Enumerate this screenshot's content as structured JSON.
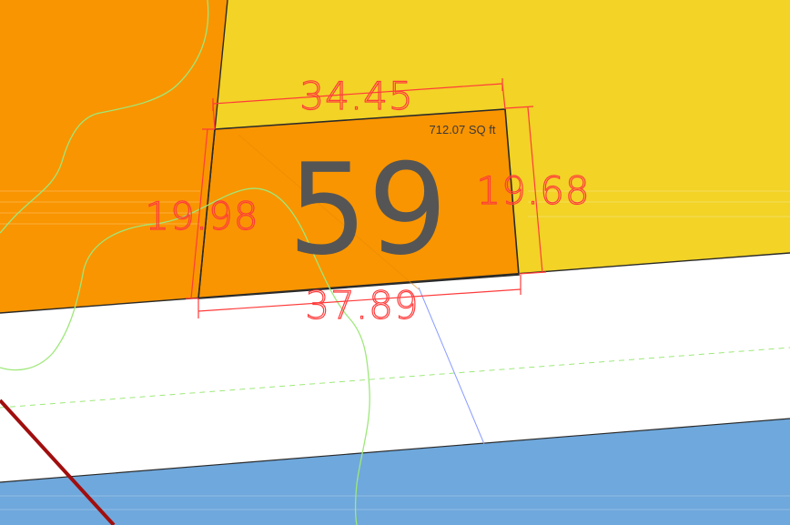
{
  "map": {
    "lot": {
      "number": "59",
      "area_label": "712.07 SQ ft",
      "dimensions": {
        "top": "34.45",
        "bottom": "37.89",
        "left": "19.98",
        "right": "19.68"
      }
    },
    "colors": {
      "lot_fill": "#F99500",
      "neighbor_fill": "#F99500",
      "zone_yellow": "#F2D326",
      "road_white": "#FFFFFF",
      "water_blue": "#6FA8DC",
      "dimension_red": "#FF3B3B",
      "lot_number_gray": "#555555",
      "contour_green": "#9EE87A",
      "boundary_line": "#2A2A2A",
      "diagonal_dark_red": "#A10E0E",
      "thin_blue_line": "#8A9CFF"
    },
    "legend_icons": [
      "parcel-polygon",
      "dimension-line",
      "contour-line"
    ]
  }
}
